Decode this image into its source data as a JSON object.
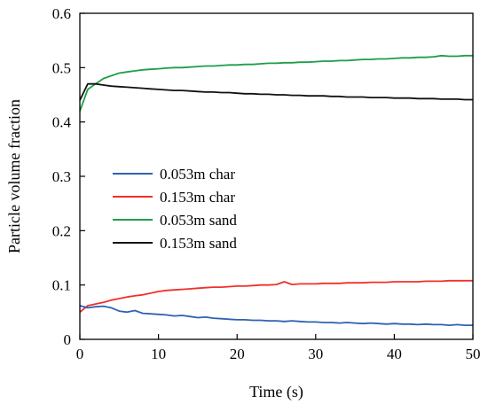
{
  "chart_data": {
    "type": "line",
    "title": "",
    "xlabel": "Time (s)",
    "ylabel": "Particle volume fraction",
    "xlim": [
      0,
      50
    ],
    "ylim": [
      0,
      0.6
    ],
    "xticks": [
      "0",
      "10",
      "20",
      "30",
      "40",
      "50"
    ],
    "yticks": [
      "0",
      "0.1",
      "0.2",
      "0.3",
      "0.4",
      "0.5",
      "0.6"
    ],
    "grid": false,
    "legend_position": "center-left",
    "x": [
      0,
      1,
      2,
      3,
      4,
      5,
      6,
      7,
      8,
      9,
      10,
      11,
      12,
      13,
      14,
      15,
      16,
      17,
      18,
      19,
      20,
      21,
      22,
      23,
      24,
      25,
      26,
      27,
      28,
      29,
      30,
      31,
      32,
      33,
      34,
      35,
      36,
      37,
      38,
      39,
      40,
      41,
      42,
      43,
      44,
      45,
      46,
      47,
      48,
      49,
      50
    ],
    "series": [
      {
        "name": "0.053m char",
        "color": "#2e62b2",
        "values": [
          0.062,
          0.058,
          0.06,
          0.061,
          0.058,
          0.052,
          0.05,
          0.053,
          0.048,
          0.047,
          0.046,
          0.045,
          0.043,
          0.044,
          0.042,
          0.04,
          0.041,
          0.039,
          0.038,
          0.037,
          0.036,
          0.036,
          0.035,
          0.035,
          0.034,
          0.034,
          0.033,
          0.034,
          0.033,
          0.032,
          0.032,
          0.031,
          0.031,
          0.03,
          0.031,
          0.03,
          0.029,
          0.03,
          0.029,
          0.028,
          0.029,
          0.028,
          0.028,
          0.027,
          0.028,
          0.027,
          0.027,
          0.026,
          0.027,
          0.026,
          0.026
        ]
      },
      {
        "name": "0.153m char",
        "color": "#f0302a",
        "values": [
          0.05,
          0.062,
          0.065,
          0.068,
          0.072,
          0.075,
          0.078,
          0.08,
          0.082,
          0.085,
          0.088,
          0.09,
          0.091,
          0.092,
          0.093,
          0.094,
          0.095,
          0.096,
          0.096,
          0.097,
          0.098,
          0.098,
          0.099,
          0.1,
          0.1,
          0.101,
          0.106,
          0.101,
          0.102,
          0.102,
          0.102,
          0.103,
          0.103,
          0.103,
          0.104,
          0.104,
          0.104,
          0.105,
          0.105,
          0.105,
          0.106,
          0.106,
          0.106,
          0.106,
          0.107,
          0.107,
          0.107,
          0.108,
          0.108,
          0.108,
          0.108
        ]
      },
      {
        "name": "0.053m sand",
        "color": "#1e9e4a",
        "values": [
          0.42,
          0.46,
          0.47,
          0.48,
          0.485,
          0.49,
          0.492,
          0.494,
          0.496,
          0.497,
          0.498,
          0.499,
          0.5,
          0.5,
          0.501,
          0.502,
          0.503,
          0.503,
          0.504,
          0.505,
          0.505,
          0.506,
          0.506,
          0.507,
          0.508,
          0.508,
          0.509,
          0.509,
          0.51,
          0.51,
          0.511,
          0.512,
          0.512,
          0.513,
          0.513,
          0.514,
          0.515,
          0.515,
          0.516,
          0.516,
          0.517,
          0.518,
          0.518,
          0.519,
          0.519,
          0.52,
          0.522,
          0.521,
          0.521,
          0.522,
          0.522
        ]
      },
      {
        "name": "0.153m sand",
        "color": "#111111",
        "values": [
          0.44,
          0.47,
          0.47,
          0.468,
          0.466,
          0.465,
          0.464,
          0.463,
          0.462,
          0.461,
          0.46,
          0.459,
          0.458,
          0.458,
          0.457,
          0.456,
          0.455,
          0.455,
          0.454,
          0.454,
          0.453,
          0.452,
          0.452,
          0.451,
          0.451,
          0.45,
          0.45,
          0.449,
          0.449,
          0.448,
          0.448,
          0.448,
          0.447,
          0.447,
          0.446,
          0.446,
          0.446,
          0.445,
          0.445,
          0.445,
          0.444,
          0.444,
          0.444,
          0.443,
          0.443,
          0.443,
          0.442,
          0.442,
          0.442,
          0.441,
          0.441
        ]
      }
    ]
  }
}
